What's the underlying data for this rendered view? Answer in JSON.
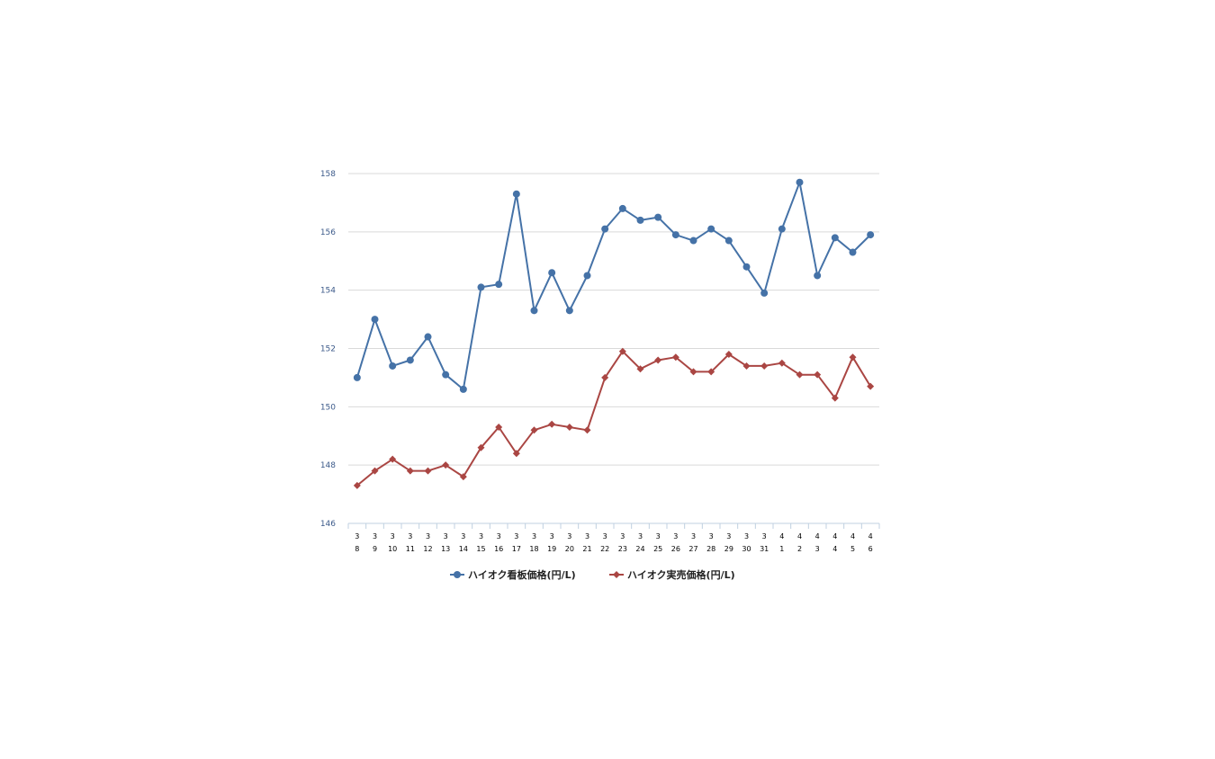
{
  "chart_data": {
    "type": "line",
    "title": "",
    "xlabel": "",
    "ylabel": "",
    "ylim": [
      146,
      158
    ],
    "y_ticks": [
      146,
      148,
      150,
      152,
      154,
      156,
      158
    ],
    "grid": "horizontal",
    "legend_position": "bottom",
    "categories": [
      {
        "month": "3",
        "day": "8"
      },
      {
        "month": "3",
        "day": "9"
      },
      {
        "month": "3",
        "day": "10"
      },
      {
        "month": "3",
        "day": "11"
      },
      {
        "month": "3",
        "day": "12"
      },
      {
        "month": "3",
        "day": "13"
      },
      {
        "month": "3",
        "day": "14"
      },
      {
        "month": "3",
        "day": "15"
      },
      {
        "month": "3",
        "day": "16"
      },
      {
        "month": "3",
        "day": "17"
      },
      {
        "month": "3",
        "day": "18"
      },
      {
        "month": "3",
        "day": "19"
      },
      {
        "month": "3",
        "day": "20"
      },
      {
        "month": "3",
        "day": "21"
      },
      {
        "month": "3",
        "day": "22"
      },
      {
        "month": "3",
        "day": "23"
      },
      {
        "month": "3",
        "day": "24"
      },
      {
        "month": "3",
        "day": "25"
      },
      {
        "month": "3",
        "day": "26"
      },
      {
        "month": "3",
        "day": "27"
      },
      {
        "month": "3",
        "day": "28"
      },
      {
        "month": "3",
        "day": "29"
      },
      {
        "month": "3",
        "day": "30"
      },
      {
        "month": "3",
        "day": "31"
      },
      {
        "month": "4",
        "day": "1"
      },
      {
        "month": "4",
        "day": "2"
      },
      {
        "month": "4",
        "day": "3"
      },
      {
        "month": "4",
        "day": "4"
      },
      {
        "month": "4",
        "day": "5"
      },
      {
        "month": "4",
        "day": "6"
      }
    ],
    "series": [
      {
        "name": "ハイオク看板価格(円/L)",
        "color": "#4572a7",
        "marker": "circle",
        "values": [
          151.0,
          153.0,
          151.4,
          151.6,
          152.4,
          151.1,
          150.6,
          154.1,
          154.2,
          157.3,
          153.3,
          154.6,
          153.3,
          154.5,
          156.1,
          156.8,
          156.4,
          156.5,
          155.9,
          155.7,
          156.1,
          155.7,
          154.8,
          153.9,
          156.1,
          157.7,
          154.5,
          155.8,
          155.3,
          155.9
        ]
      },
      {
        "name": "ハイオク実売価格(円/L)",
        "color": "#aa4643",
        "marker": "diamond",
        "values": [
          147.3,
          147.8,
          148.2,
          147.8,
          147.8,
          148.0,
          147.6,
          148.6,
          149.3,
          148.4,
          149.2,
          149.4,
          149.3,
          149.2,
          151.0,
          151.9,
          151.3,
          151.6,
          151.7,
          151.2,
          151.2,
          151.8,
          151.4,
          151.4,
          151.5,
          151.1,
          151.1,
          150.3,
          151.7,
          150.7
        ]
      }
    ]
  }
}
